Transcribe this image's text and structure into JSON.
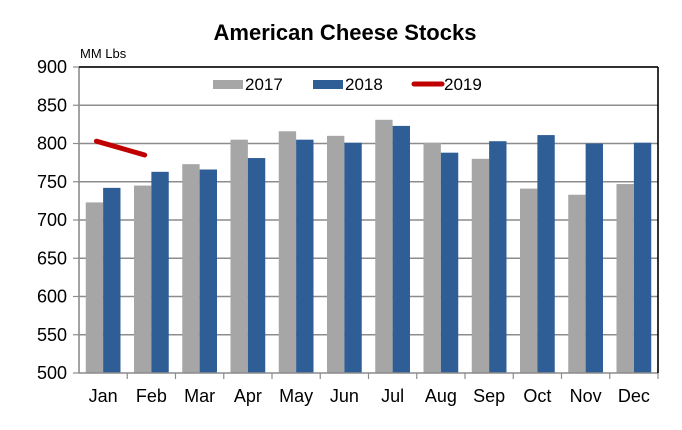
{
  "chart_data": {
    "type": "bar",
    "title": "American Cheese Stocks",
    "ylabel": "MM Lbs",
    "xlabel": "",
    "ylim": [
      500,
      900
    ],
    "yticks": [
      500,
      550,
      600,
      650,
      700,
      750,
      800,
      850,
      900
    ],
    "grid": true,
    "legend_position": "top-center",
    "categories": [
      "Jan",
      "Feb",
      "Mar",
      "Apr",
      "May",
      "Jun",
      "Jul",
      "Aug",
      "Sep",
      "Oct",
      "Nov",
      "Dec"
    ],
    "series": [
      {
        "name": "2017",
        "kind": "bar",
        "color": "#A6A6A6",
        "values": [
          723,
          745,
          773,
          805,
          816,
          810,
          831,
          801,
          780,
          741,
          733,
          747
        ]
      },
      {
        "name": "2018",
        "kind": "bar",
        "color": "#2F5D95",
        "values": [
          742,
          763,
          766,
          781,
          805,
          801,
          823,
          788,
          803,
          811,
          800,
          801
        ]
      },
      {
        "name": "2019",
        "kind": "line",
        "color": "#C00000",
        "values": [
          803,
          785,
          null,
          null,
          null,
          null,
          null,
          null,
          null,
          null,
          null,
          null
        ]
      }
    ]
  }
}
